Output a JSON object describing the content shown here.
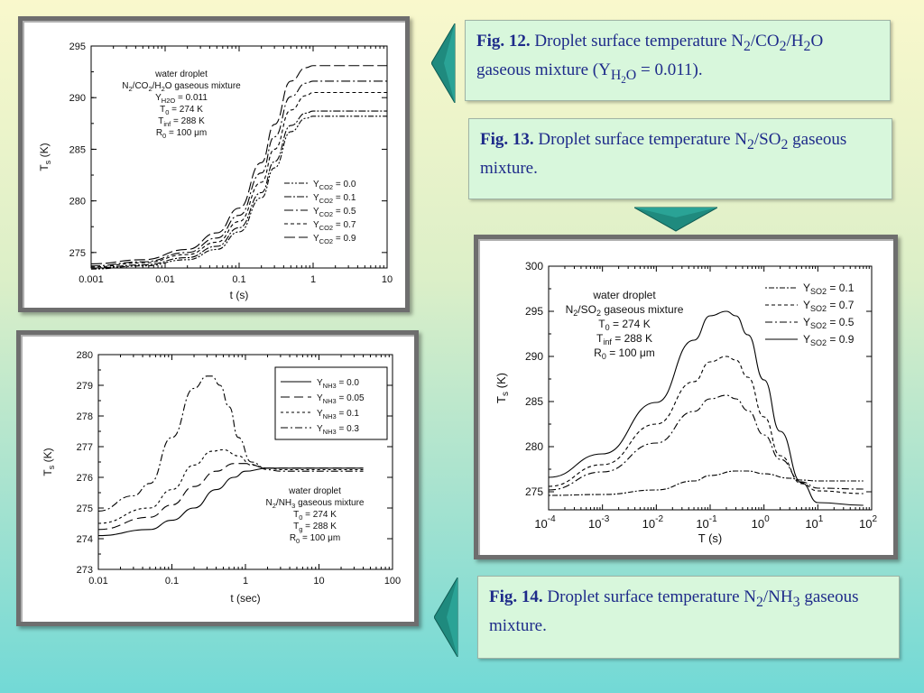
{
  "captions": {
    "fig12": {
      "label": "Fig. 12.",
      "text_before": " Droplet surface temperature N",
      "sub1": "2",
      "mid1": "/CO",
      "sub2": "2",
      "mid2": "/H",
      "sub3": "2",
      "mid3": "O gaseous mixture (Y",
      "sub4": "H",
      "sub4b": "2",
      "sub4c": "O",
      "after": " = 0.011)."
    },
    "fig13": {
      "label": "Fig. 13.",
      "text_before": " Droplet surface temperature N",
      "sub1": "2",
      "mid1": "/SO",
      "sub2": "2",
      "after": " gaseous mixture."
    },
    "fig14": {
      "label": "Fig. 14.",
      "text_before": " Droplet surface temperature N",
      "sub1": "2",
      "mid1": "/NH",
      "sub2": "3",
      "after": " gaseous mixture."
    }
  },
  "colors": {
    "caption_text": "#1e2b8a",
    "caption_bg": "#d8f7dc",
    "arrow": "#1f8a7e",
    "frame": "#6e6e6e"
  },
  "chart_data": [
    {
      "id": "fig12",
      "type": "line",
      "xscale": "log",
      "xlim": [
        0.001,
        10
      ],
      "ylim": [
        273.5,
        295
      ],
      "xticks": [
        "0.001",
        "0.01",
        "0.1",
        "1",
        "10"
      ],
      "yticks": [
        "275",
        "280",
        "285",
        "290",
        "295"
      ],
      "xlabel": "t (s)",
      "ylabel_main": "T",
      "ylabel_sub": "s",
      "ylabel_unit": " (K)",
      "annotations": [
        "water droplet",
        "N2/CO2/H2O gaseous mixture",
        "YH2O = 0.011",
        "T0 = 274 K",
        "Tinf = 288 K",
        "R0 = 100 μm"
      ],
      "series": [
        {
          "name": "YCO2 = 0.0",
          "dash": "6,2,2,2,2,2",
          "x": [
            0.001,
            0.005,
            0.02,
            0.05,
            0.1,
            0.2,
            0.3,
            0.5,
            0.8,
            1,
            2,
            10
          ],
          "y": [
            273.4,
            273.7,
            274.3,
            275.3,
            277.0,
            280.3,
            283.2,
            286.7,
            288.0,
            288.2,
            288.2,
            288.2
          ]
        },
        {
          "name": "YCO2 = 0.1",
          "dash": "8,2,2,2",
          "x": [
            0.001,
            0.005,
            0.02,
            0.05,
            0.1,
            0.2,
            0.3,
            0.5,
            0.8,
            1,
            2,
            10
          ],
          "y": [
            273.5,
            273.8,
            274.5,
            275.6,
            277.4,
            280.8,
            283.8,
            287.3,
            288.5,
            288.7,
            288.7,
            288.7
          ]
        },
        {
          "name": "YCO2 = 0.5",
          "dash": "10,3,2,3",
          "x": [
            0.001,
            0.005,
            0.02,
            0.05,
            0.1,
            0.2,
            0.3,
            0.5,
            0.8,
            1,
            2,
            10
          ],
          "y": [
            273.7,
            274.1,
            275.0,
            276.4,
            278.6,
            282.7,
            286.2,
            290.1,
            291.4,
            291.6,
            291.6,
            291.6
          ]
        },
        {
          "name": "YCO2 = 0.7",
          "dash": "4,3",
          "x": [
            0.001,
            0.005,
            0.02,
            0.05,
            0.1,
            0.2,
            0.3,
            0.5,
            0.8,
            1,
            2,
            10
          ],
          "y": [
            273.6,
            274.0,
            274.8,
            276.0,
            278.0,
            281.8,
            285.0,
            288.8,
            290.2,
            290.5,
            290.5,
            290.5
          ]
        },
        {
          "name": "YCO2 = 0.9",
          "dash": "12,4",
          "x": [
            0.001,
            0.005,
            0.02,
            0.05,
            0.1,
            0.2,
            0.3,
            0.5,
            0.8,
            1,
            2,
            10
          ],
          "y": [
            273.9,
            274.3,
            275.3,
            276.9,
            279.3,
            283.7,
            287.4,
            291.6,
            292.9,
            293.1,
            293.1,
            293.1
          ]
        }
      ],
      "legend": "bottom-right"
    },
    {
      "id": "fig13",
      "type": "line",
      "xscale": "log",
      "xlim": [
        0.0001,
        100
      ],
      "ylim": [
        273,
        300
      ],
      "xticks_base": [
        "10",
        "10",
        "10",
        "10",
        "10",
        "10",
        "10"
      ],
      "xticks_exp": [
        "-4",
        "-3",
        "-2",
        "-1",
        "0",
        "1",
        "2"
      ],
      "yticks": [
        "275",
        "280",
        "285",
        "290",
        "295",
        "300"
      ],
      "xlabel": "T (s)",
      "ylabel_main": "T",
      "ylabel_sub": "s",
      "ylabel_unit": " (K)",
      "annotations": [
        "water droplet",
        "N2/SO2 gaseous mixture",
        "T0 = 274 K",
        "Tinf = 288 K",
        "R0 = 100 μm"
      ],
      "series": [
        {
          "name": "YSO2 = 0.1",
          "dash": "2,2,6,2",
          "x": [
            0.0001,
            0.001,
            0.01,
            0.05,
            0.1,
            0.3,
            0.5,
            1,
            3,
            5,
            10,
            70
          ],
          "y": [
            274.6,
            274.7,
            275.2,
            276.2,
            276.8,
            277.3,
            277.3,
            277.0,
            276.5,
            276.3,
            276.2,
            276.2
          ]
        },
        {
          "name": "YSO2 = 0.7",
          "dash": "4,3",
          "x": [
            0.0001,
            0.001,
            0.01,
            0.05,
            0.1,
            0.2,
            0.3,
            0.5,
            1,
            2,
            5,
            10,
            70
          ],
          "y": [
            275.6,
            278.0,
            282.5,
            287.2,
            289.4,
            290.0,
            289.6,
            287.7,
            283.3,
            279.0,
            275.9,
            275.1,
            274.8
          ]
        },
        {
          "name": "YSO2 = 0.5",
          "dash": "8,3,2,3",
          "x": [
            0.0001,
            0.001,
            0.01,
            0.05,
            0.1,
            0.2,
            0.3,
            0.5,
            1,
            2,
            5,
            10,
            70
          ],
          "y": [
            275.2,
            277.2,
            280.4,
            283.9,
            285.3,
            285.7,
            285.3,
            284.0,
            281.3,
            278.6,
            276.1,
            275.4,
            275.3
          ]
        },
        {
          "name": "YSO2 = 0.9",
          "dash": "",
          "x": [
            0.0001,
            0.001,
            0.01,
            0.05,
            0.1,
            0.2,
            0.3,
            0.5,
            1,
            2,
            5,
            10,
            70
          ],
          "y": [
            276.6,
            279.2,
            284.9,
            291.8,
            294.5,
            295.0,
            294.5,
            292.4,
            287.4,
            281.7,
            276.0,
            273.8,
            273.5
          ]
        }
      ],
      "legend": "top-right"
    },
    {
      "id": "fig14",
      "type": "line",
      "xscale": "log",
      "xlim": [
        0.01,
        100
      ],
      "ylim": [
        273,
        280
      ],
      "xticks": [
        "0.01",
        "0.1",
        "1",
        "10",
        "100"
      ],
      "yticks": [
        "273",
        "274",
        "275",
        "276",
        "277",
        "278",
        "279",
        "280"
      ],
      "xlabel": "t (sec)",
      "ylabel_main": "T",
      "ylabel_sub": "s",
      "ylabel_unit": " (K)",
      "annotations": [
        "water droplet",
        "N2/NH3 gaseous mixture",
        "T0 = 274 K",
        "Tg = 288 K",
        "R0 = 100 μm"
      ],
      "series": [
        {
          "name": "YNH3 = 0.0",
          "dash": "",
          "x": [
            0.01,
            0.05,
            0.1,
            0.2,
            0.4,
            0.7,
            1,
            2,
            3,
            5,
            10,
            40
          ],
          "y": [
            274.1,
            274.3,
            274.6,
            275.0,
            275.6,
            276.0,
            276.2,
            276.3,
            276.3,
            276.3,
            276.3,
            276.3
          ]
        },
        {
          "name": "YNH3 = 0.05",
          "dash": "10,5",
          "x": [
            0.01,
            0.05,
            0.1,
            0.2,
            0.4,
            0.7,
            1,
            2,
            3,
            5,
            10,
            40
          ],
          "y": [
            274.3,
            274.7,
            275.1,
            275.7,
            276.2,
            276.45,
            276.45,
            276.3,
            276.3,
            276.3,
            276.3,
            276.3
          ]
        },
        {
          "name": "YNH3 = 0.1",
          "dash": "3,3",
          "x": [
            0.01,
            0.05,
            0.1,
            0.2,
            0.35,
            0.5,
            0.8,
            1.2,
            2,
            3,
            5,
            40
          ],
          "y": [
            274.5,
            275.0,
            275.6,
            276.4,
            276.85,
            276.9,
            276.7,
            276.4,
            276.3,
            276.25,
            276.25,
            276.25
          ]
        },
        {
          "name": "YNH3 = 0.3",
          "dash": "8,3,2,3",
          "x": [
            0.01,
            0.03,
            0.05,
            0.1,
            0.2,
            0.3,
            0.35,
            0.45,
            0.6,
            0.8,
            1.2,
            2,
            3,
            5,
            40
          ],
          "y": [
            274.9,
            275.4,
            275.8,
            277.3,
            278.9,
            279.3,
            279.3,
            279.0,
            278.3,
            277.3,
            276.5,
            276.25,
            276.2,
            276.2,
            276.2
          ]
        }
      ],
      "legend": "top-right"
    }
  ]
}
